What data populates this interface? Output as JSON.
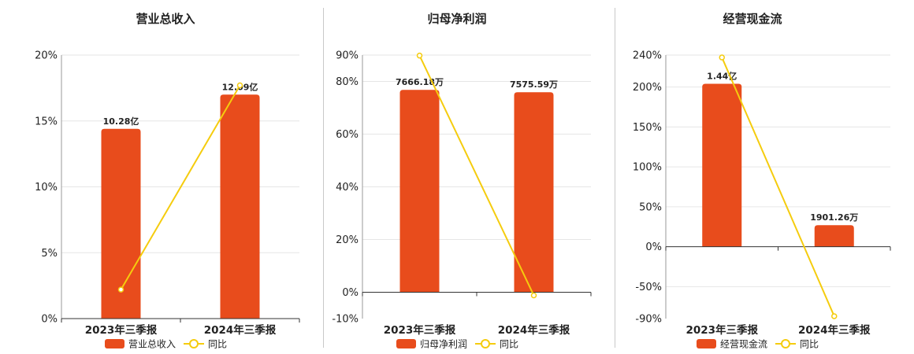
{
  "colors": {
    "bar": "#e84c1c",
    "line": "#f5cc0e",
    "grid": "#e6e6e6",
    "axis": "#333333",
    "text": "#222222"
  },
  "chart_data": [
    {
      "type": "bar",
      "title": "营业总收入",
      "categories": [
        "2023年三季报",
        "2024年三季报"
      ],
      "ylim": [
        0,
        20
      ],
      "yticks": [
        0,
        5,
        10,
        15,
        20
      ],
      "tick_suffix": "%",
      "series": [
        {
          "name": "营业总收入",
          "kind": "bar",
          "values": [
            14.4,
            17.0
          ],
          "labels": [
            "10.28亿",
            "12.09亿"
          ]
        },
        {
          "name": "同比",
          "kind": "line",
          "values": [
            2.2,
            17.7
          ]
        }
      ],
      "grid": true,
      "legend": "bottom"
    },
    {
      "type": "bar",
      "title": "归母净利润",
      "categories": [
        "2023年三季报",
        "2024年三季报"
      ],
      "ylim": [
        -10,
        90
      ],
      "yticks": [
        -10,
        0,
        20,
        40,
        60,
        80,
        90
      ],
      "tick_suffix": "%",
      "series": [
        {
          "name": "归母净利润",
          "kind": "bar",
          "values": [
            76.8,
            75.9
          ],
          "labels": [
            "7666.18万",
            "7575.59万"
          ]
        },
        {
          "name": "同比",
          "kind": "line",
          "values": [
            89.8,
            -1.2
          ]
        }
      ],
      "grid": true,
      "legend": "bottom"
    },
    {
      "type": "bar",
      "title": "经营现金流",
      "categories": [
        "2023年三季报",
        "2024年三季报"
      ],
      "ylim": [
        -90,
        240
      ],
      "yticks": [
        -90,
        -50,
        0,
        50,
        100,
        150,
        200,
        240
      ],
      "tick_suffix": "%",
      "series": [
        {
          "name": "经营现金流",
          "kind": "bar",
          "values": [
            204,
            27
          ],
          "labels": [
            "1.44亿",
            "1901.26万"
          ]
        },
        {
          "name": "同比",
          "kind": "line",
          "values": [
            237,
            -87
          ]
        }
      ],
      "grid": true,
      "legend": "bottom"
    }
  ]
}
